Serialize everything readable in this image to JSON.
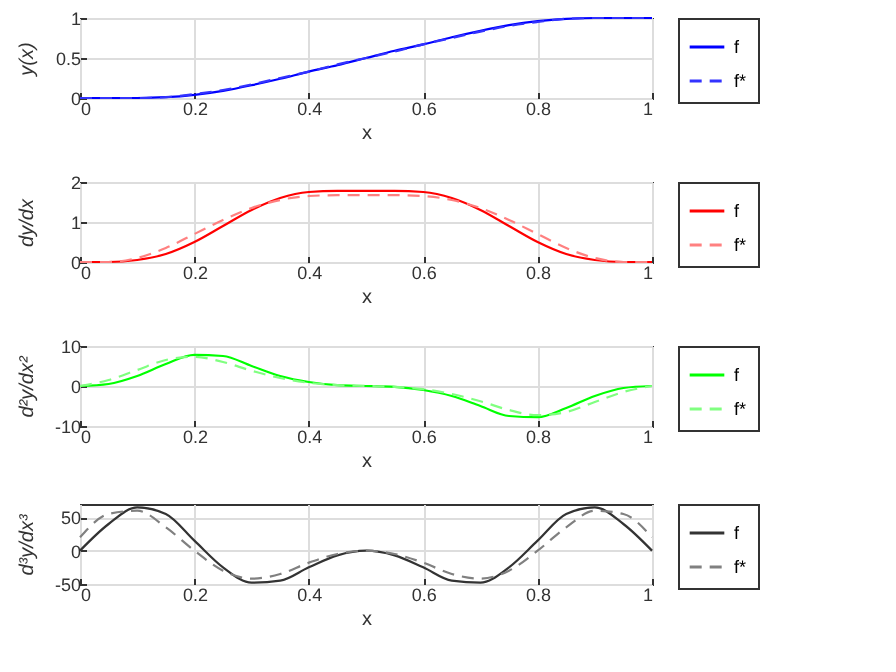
{
  "chart_data": [
    {
      "type": "line",
      "ylabel": "y(x)",
      "xlabel": "x",
      "x": [
        0,
        0.05,
        0.1,
        0.15,
        0.2,
        0.25,
        0.3,
        0.35,
        0.4,
        0.45,
        0.5,
        0.55,
        0.6,
        0.65,
        0.7,
        0.75,
        0.8,
        0.85,
        0.9,
        0.95,
        1
      ],
      "xlim": [
        0,
        1
      ],
      "xticks": [
        0,
        0.2,
        0.4,
        0.6,
        0.8,
        1
      ],
      "ylim": [
        0,
        1
      ],
      "yticks": [
        0,
        0.5,
        1
      ],
      "grid": true,
      "legend": "right",
      "series": [
        {
          "name": "f",
          "color": "#0000ff",
          "line_style": "solid",
          "values": [
            0,
            0,
            0,
            0.01,
            0.04,
            0.09,
            0.16,
            0.24,
            0.33,
            0.41,
            0.5,
            0.59,
            0.67,
            0.76,
            0.84,
            0.91,
            0.96,
            0.99,
            1,
            1,
            1
          ]
        },
        {
          "name": "f*",
          "color": "#3333ff",
          "line_style": "dashed",
          "values": [
            0,
            0,
            0,
            0.01,
            0.05,
            0.1,
            0.17,
            0.25,
            0.33,
            0.42,
            0.5,
            0.58,
            0.67,
            0.75,
            0.83,
            0.9,
            0.95,
            0.99,
            1,
            1,
            1
          ]
        }
      ]
    },
    {
      "type": "line",
      "ylabel": "dy/dx",
      "xlabel": "x",
      "x": [
        0,
        0.05,
        0.1,
        0.15,
        0.2,
        0.25,
        0.3,
        0.35,
        0.4,
        0.45,
        0.5,
        0.55,
        0.6,
        0.65,
        0.7,
        0.75,
        0.8,
        0.85,
        0.9,
        0.95,
        1
      ],
      "xlim": [
        0,
        1
      ],
      "xticks": [
        0,
        0.2,
        0.4,
        0.6,
        0.8,
        1
      ],
      "ylim": [
        0,
        2
      ],
      "yticks": [
        0,
        1,
        2
      ],
      "grid": true,
      "legend": "right",
      "series": [
        {
          "name": "f",
          "color": "#ff0000",
          "line_style": "solid",
          "values": [
            0,
            0,
            0.05,
            0.2,
            0.5,
            0.9,
            1.3,
            1.6,
            1.75,
            1.78,
            1.78,
            1.78,
            1.75,
            1.6,
            1.3,
            0.9,
            0.5,
            0.2,
            0.05,
            0,
            0
          ]
        },
        {
          "name": "f*",
          "color": "#ff8080",
          "line_style": "dashed",
          "values": [
            0,
            0,
            0.1,
            0.35,
            0.7,
            1.05,
            1.35,
            1.55,
            1.65,
            1.67,
            1.67,
            1.67,
            1.65,
            1.55,
            1.35,
            1.05,
            0.7,
            0.35,
            0.1,
            0,
            0
          ]
        }
      ]
    },
    {
      "type": "line",
      "ylabel": "d²y/dx²",
      "xlabel": "x",
      "x": [
        0,
        0.05,
        0.1,
        0.15,
        0.2,
        0.25,
        0.3,
        0.35,
        0.4,
        0.45,
        0.5,
        0.55,
        0.6,
        0.65,
        0.7,
        0.75,
        0.8,
        0.85,
        0.9,
        0.95,
        1
      ],
      "xlim": [
        0,
        1
      ],
      "xticks": [
        0,
        0.2,
        0.4,
        0.6,
        0.8,
        1
      ],
      "ylim": [
        -10,
        10
      ],
      "yticks": [
        -10,
        0,
        10
      ],
      "grid": true,
      "legend": "right",
      "series": [
        {
          "name": "f",
          "color": "#00ff00",
          "line_style": "solid",
          "values": [
            0,
            0.5,
            2.5,
            5.5,
            7.8,
            7.5,
            5,
            2.5,
            1,
            0.2,
            0,
            -0.2,
            -1,
            -2.5,
            -5,
            -7.5,
            -7.8,
            -5.5,
            -2.5,
            -0.5,
            0
          ]
        },
        {
          "name": "f*",
          "color": "#80ff80",
          "line_style": "dashed",
          "values": [
            0,
            1.5,
            4,
            6.5,
            7.3,
            6,
            3.8,
            2,
            0.8,
            0.2,
            0,
            -0.2,
            -0.8,
            -2,
            -3.8,
            -6,
            -7.3,
            -6.5,
            -4,
            -1.5,
            0
          ]
        }
      ]
    },
    {
      "type": "line",
      "ylabel": "d³y/dx³",
      "xlabel": "x",
      "x": [
        0,
        0.05,
        0.1,
        0.15,
        0.2,
        0.25,
        0.3,
        0.35,
        0.4,
        0.45,
        0.5,
        0.55,
        0.6,
        0.65,
        0.7,
        0.75,
        0.8,
        0.85,
        0.9,
        0.95,
        1
      ],
      "xlim": [
        0,
        1
      ],
      "xticks": [
        0,
        0.2,
        0.4,
        0.6,
        0.8,
        1
      ],
      "ylim": [
        -50,
        70
      ],
      "yticks": [
        -50,
        0,
        50
      ],
      "grid": true,
      "legend": "right",
      "series": [
        {
          "name": "f",
          "color": "#333333",
          "line_style": "solid",
          "values": [
            0,
            40,
            65,
            55,
            15,
            -25,
            -48,
            -45,
            -25,
            -7,
            0,
            -7,
            -25,
            -45,
            -48,
            -25,
            15,
            55,
            65,
            40,
            0
          ]
        },
        {
          "name": "f*",
          "color": "#808080",
          "line_style": "dashed",
          "values": [
            20,
            55,
            60,
            35,
            0,
            -30,
            -42,
            -35,
            -18,
            -5,
            0,
            -5,
            -18,
            -35,
            -42,
            -30,
            0,
            35,
            60,
            55,
            20
          ]
        }
      ]
    }
  ]
}
